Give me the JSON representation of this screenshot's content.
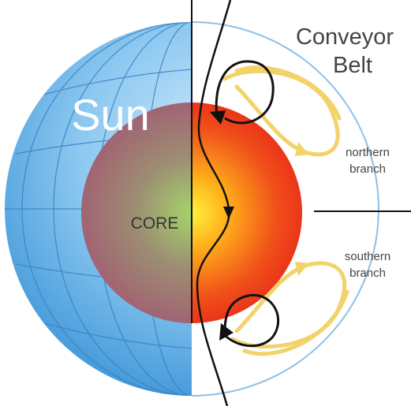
{
  "title": {
    "lines": [
      "Conveyor",
      "Belt"
    ]
  },
  "labels": {
    "sun": "Sun",
    "core": "CORE",
    "northern_branch": [
      "northern",
      "branch"
    ],
    "southern_branch": [
      "southern",
      "branch"
    ]
  }
}
